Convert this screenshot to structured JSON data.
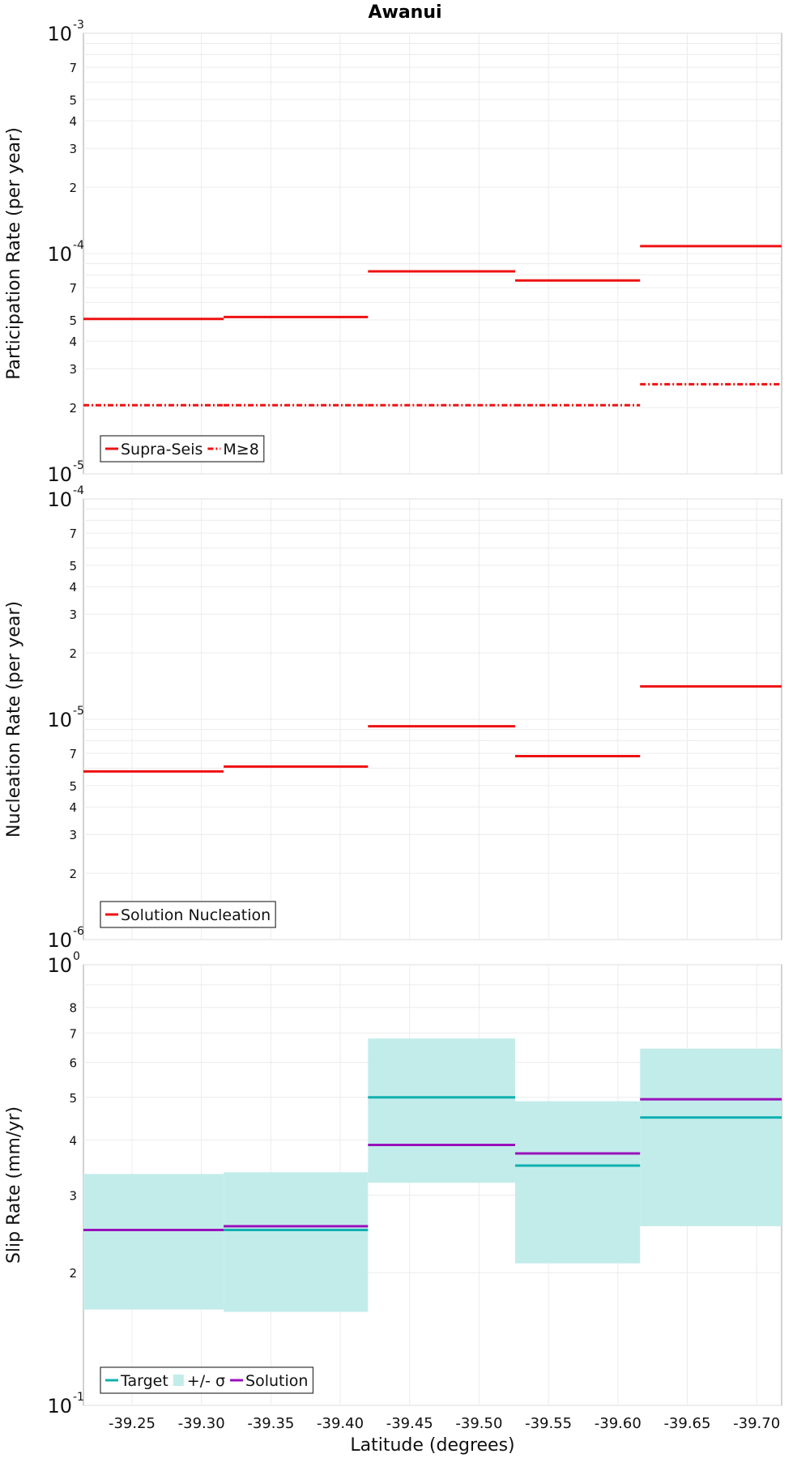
{
  "chart_data": [
    {
      "type": "line",
      "title": "Awanui",
      "ylabel": "Participation Rate (per year)",
      "yscale": "log",
      "ylim": [
        1e-05,
        0.001
      ],
      "xlim": [
        -39.215,
        -39.718
      ],
      "grid": true,
      "legend_position": "bottom-left",
      "bins": [
        [
          -39.215,
          -39.316
        ],
        [
          -39.316,
          -39.42
        ],
        [
          -39.42,
          -39.526
        ],
        [
          -39.526,
          -39.616
        ],
        [
          -39.616,
          -39.718
        ]
      ],
      "series": [
        {
          "name": "Supra-Seis",
          "color": "#ee1111",
          "style": "solid",
          "values": [
            5.05e-05,
            5.15e-05,
            8.3e-05,
            7.55e-05,
            0.000108
          ]
        },
        {
          "name": "M≥8",
          "color": "#ee1111",
          "style": "dashdot",
          "values": [
            2.05e-05,
            2.05e-05,
            2.05e-05,
            2.05e-05,
            2.55e-05
          ]
        }
      ]
    },
    {
      "type": "line",
      "ylabel": "Nucleation Rate (per year)",
      "yscale": "log",
      "ylim": [
        1e-06,
        0.0001
      ],
      "xlim": [
        -39.215,
        -39.718
      ],
      "grid": true,
      "legend_position": "bottom-left",
      "bins": [
        [
          -39.215,
          -39.316
        ],
        [
          -39.316,
          -39.42
        ],
        [
          -39.42,
          -39.526
        ],
        [
          -39.526,
          -39.616
        ],
        [
          -39.616,
          -39.718
        ]
      ],
      "series": [
        {
          "name": "Solution Nucleation",
          "color": "#ee1111",
          "style": "solid",
          "values": [
            5.8e-06,
            6.1e-06,
            9.3e-06,
            6.8e-06,
            1.41e-05
          ]
        }
      ]
    },
    {
      "type": "area",
      "ylabel": "Slip Rate (mm/yr)",
      "xlabel": "Latitude (degrees)",
      "yscale": "log",
      "ylim": [
        0.1,
        1
      ],
      "xlim": [
        -39.215,
        -39.718
      ],
      "grid": true,
      "legend_position": "bottom-left",
      "x_ticks": [
        "-39.25",
        "-39.30",
        "-39.35",
        "-39.40",
        "-39.45",
        "-39.50",
        "-39.55",
        "-39.60",
        "-39.65",
        "-39.70"
      ],
      "bins": [
        [
          -39.215,
          -39.316
        ],
        [
          -39.316,
          -39.42
        ],
        [
          -39.42,
          -39.526
        ],
        [
          -39.526,
          -39.616
        ],
        [
          -39.616,
          -39.718
        ]
      ],
      "target": {
        "name": "Target",
        "color": "#10b0b0",
        "values": [
          0.25,
          0.25,
          0.5,
          0.35,
          0.45
        ]
      },
      "sigma": {
        "name": "+/- σ",
        "color": "#c2ecea",
        "lower": [
          0.165,
          0.163,
          0.32,
          0.21,
          0.255
        ],
        "upper": [
          0.335,
          0.338,
          0.68,
          0.49,
          0.645
        ]
      },
      "solution": {
        "name": "Solution",
        "color": "#9911bb",
        "values": [
          0.25,
          0.255,
          0.39,
          0.373,
          0.495
        ]
      }
    }
  ]
}
